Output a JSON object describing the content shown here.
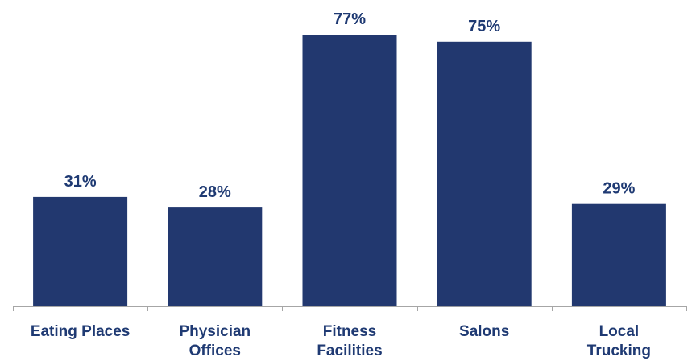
{
  "colors": {
    "bar": "#22386f",
    "label": "#1f3a73",
    "axis": "#a6a6a6",
    "background": "#ffffff"
  },
  "chart_data": {
    "type": "bar",
    "title": "",
    "xlabel": "",
    "ylabel": "",
    "grid": false,
    "legend": "none",
    "ylim": [
      0,
      80
    ],
    "categories": [
      [
        "Eating Places"
      ],
      [
        "Physician",
        "Offices"
      ],
      [
        "Fitness",
        "Facilities"
      ],
      [
        "Salons"
      ],
      [
        "Local",
        "Trucking"
      ]
    ],
    "values": [
      31,
      28,
      77,
      75,
      29
    ],
    "value_labels": [
      "31%",
      "28%",
      "77%",
      "75%",
      "29%"
    ]
  }
}
